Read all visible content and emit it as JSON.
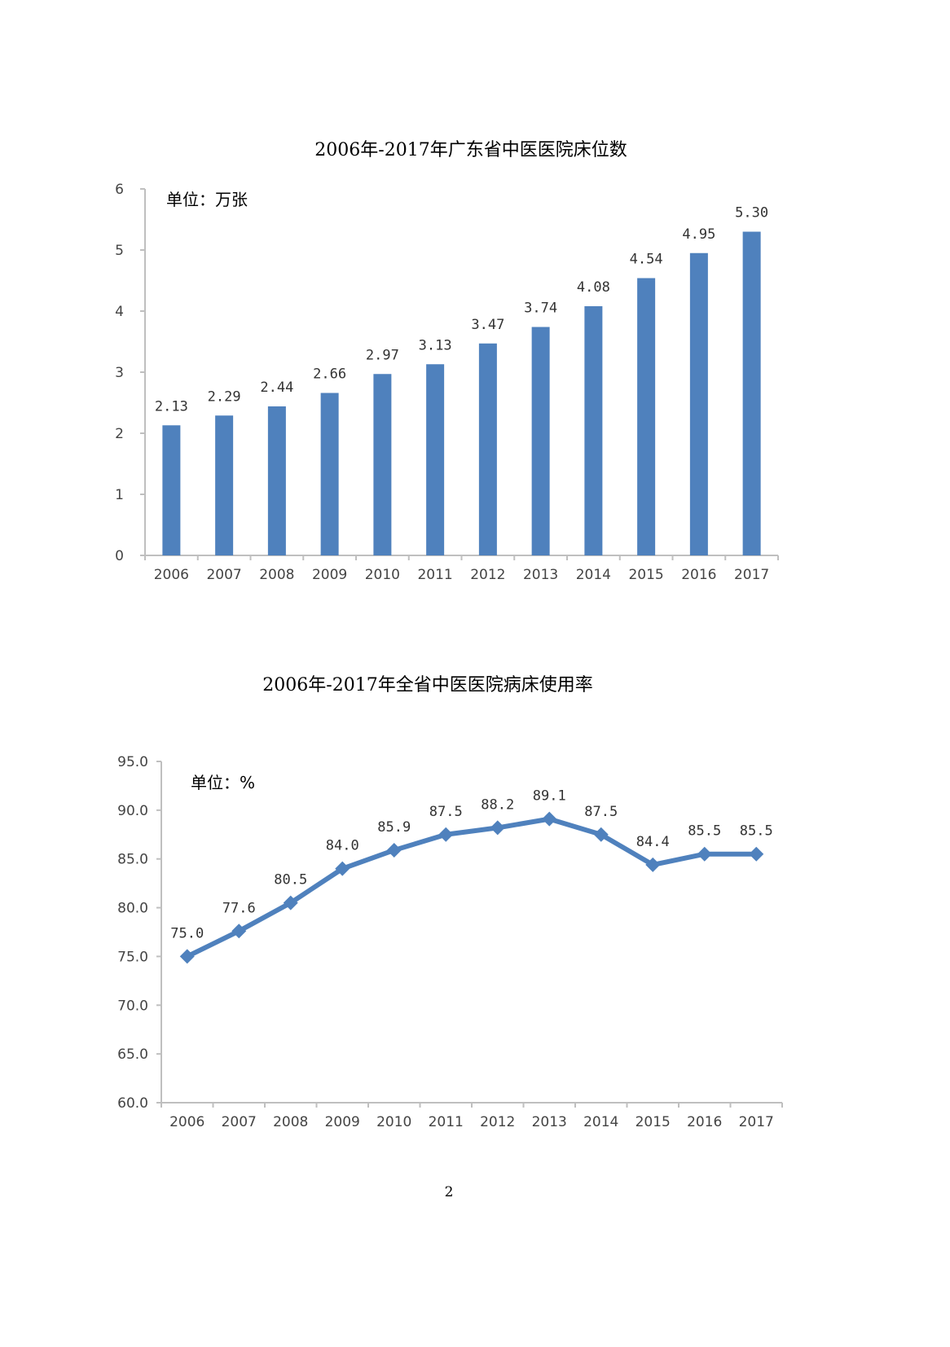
{
  "chart_data": [
    {
      "type": "bar",
      "title": "2006年-2017年广东省中医医院床位数",
      "unit_label": "单位：万张",
      "categories": [
        "2006",
        "2007",
        "2008",
        "2009",
        "2010",
        "2011",
        "2012",
        "2013",
        "2014",
        "2015",
        "2016",
        "2017"
      ],
      "values": [
        2.13,
        2.29,
        2.44,
        2.66,
        2.97,
        3.13,
        3.47,
        3.74,
        4.08,
        4.54,
        4.95,
        5.3
      ],
      "data_labels": [
        "2.13",
        "2.29",
        "2.44",
        "2.66",
        "2.97",
        "3.13",
        "3.47",
        "3.74",
        "4.08",
        "4.54",
        "4.95",
        "5.30"
      ],
      "yticks": [
        "0",
        "1",
        "2",
        "3",
        "4",
        "5",
        "6"
      ],
      "ylim": [
        0,
        6
      ],
      "xlabel": "",
      "ylabel": "",
      "grid": false,
      "color": "#4f81bd"
    },
    {
      "type": "line",
      "title": "2006年-2017年全省中医医院病床使用率",
      "unit_label": "单位：%",
      "categories": [
        "2006",
        "2007",
        "2008",
        "2009",
        "2010",
        "2011",
        "2012",
        "2013",
        "2014",
        "2015",
        "2016",
        "2017"
      ],
      "values": [
        75.0,
        77.6,
        80.5,
        84.0,
        85.9,
        87.5,
        88.2,
        89.1,
        87.5,
        84.4,
        85.5,
        85.5
      ],
      "data_labels": [
        "75.0",
        "77.6",
        "80.5",
        "84.0",
        "85.9",
        "87.5",
        "88.2",
        "89.1",
        "87.5",
        "84.4",
        "85.5",
        "85.5"
      ],
      "yticks": [
        "60.0",
        "65.0",
        "70.0",
        "75.0",
        "80.0",
        "85.0",
        "90.0",
        "95.0"
      ],
      "ylim": [
        60,
        95
      ],
      "xlabel": "",
      "ylabel": "",
      "grid": false,
      "marker": "diamond",
      "color": "#4f81bd"
    }
  ],
  "page_number": "2"
}
